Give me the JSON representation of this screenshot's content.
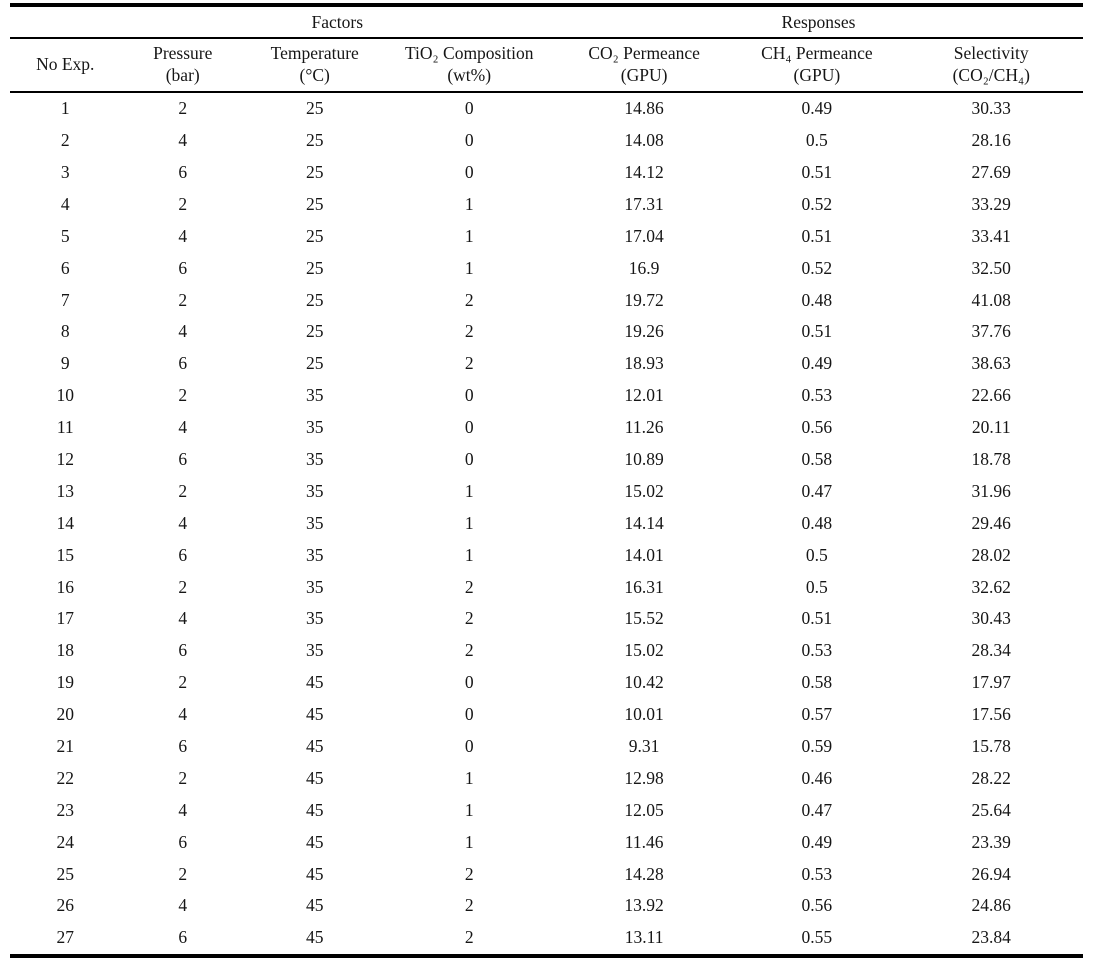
{
  "table": {
    "group_headers": {
      "factors": "Factors",
      "responses": "Responses"
    },
    "columns": [
      {
        "label": "No Exp.",
        "unit": ""
      },
      {
        "label": "Pressure",
        "unit": "(bar)"
      },
      {
        "label": "Temperature",
        "unit": "(°C)"
      },
      {
        "label": "TiO₂ Composition",
        "unit": "(wt%)"
      },
      {
        "label": "CO₂ Permeance",
        "unit": "(GPU)"
      },
      {
        "label": "CH₄ Permeance",
        "unit": "(GPU)"
      },
      {
        "label": "Selectivity",
        "unit": "(CO₂/CH₄)"
      }
    ],
    "rows": [
      [
        "1",
        "2",
        "25",
        "0",
        "14.86",
        "0.49",
        "30.33"
      ],
      [
        "2",
        "4",
        "25",
        "0",
        "14.08",
        "0.5",
        "28.16"
      ],
      [
        "3",
        "6",
        "25",
        "0",
        "14.12",
        "0.51",
        "27.69"
      ],
      [
        "4",
        "2",
        "25",
        "1",
        "17.31",
        "0.52",
        "33.29"
      ],
      [
        "5",
        "4",
        "25",
        "1",
        "17.04",
        "0.51",
        "33.41"
      ],
      [
        "6",
        "6",
        "25",
        "1",
        "16.9",
        "0.52",
        "32.50"
      ],
      [
        "7",
        "2",
        "25",
        "2",
        "19.72",
        "0.48",
        "41.08"
      ],
      [
        "8",
        "4",
        "25",
        "2",
        "19.26",
        "0.51",
        "37.76"
      ],
      [
        "9",
        "6",
        "25",
        "2",
        "18.93",
        "0.49",
        "38.63"
      ],
      [
        "10",
        "2",
        "35",
        "0",
        "12.01",
        "0.53",
        "22.66"
      ],
      [
        "11",
        "4",
        "35",
        "0",
        "11.26",
        "0.56",
        "20.11"
      ],
      [
        "12",
        "6",
        "35",
        "0",
        "10.89",
        "0.58",
        "18.78"
      ],
      [
        "13",
        "2",
        "35",
        "1",
        "15.02",
        "0.47",
        "31.96"
      ],
      [
        "14",
        "4",
        "35",
        "1",
        "14.14",
        "0.48",
        "29.46"
      ],
      [
        "15",
        "6",
        "35",
        "1",
        "14.01",
        "0.5",
        "28.02"
      ],
      [
        "16",
        "2",
        "35",
        "2",
        "16.31",
        "0.5",
        "32.62"
      ],
      [
        "17",
        "4",
        "35",
        "2",
        "15.52",
        "0.51",
        "30.43"
      ],
      [
        "18",
        "6",
        "35",
        "2",
        "15.02",
        "0.53",
        "28.34"
      ],
      [
        "19",
        "2",
        "45",
        "0",
        "10.42",
        "0.58",
        "17.97"
      ],
      [
        "20",
        "4",
        "45",
        "0",
        "10.01",
        "0.57",
        "17.56"
      ],
      [
        "21",
        "6",
        "45",
        "0",
        "9.31",
        "0.59",
        "15.78"
      ],
      [
        "22",
        "2",
        "45",
        "1",
        "12.98",
        "0.46",
        "28.22"
      ],
      [
        "23",
        "4",
        "45",
        "1",
        "12.05",
        "0.47",
        "25.64"
      ],
      [
        "24",
        "6",
        "45",
        "1",
        "11.46",
        "0.49",
        "23.39"
      ],
      [
        "25",
        "2",
        "45",
        "2",
        "14.28",
        "0.53",
        "26.94"
      ],
      [
        "26",
        "4",
        "45",
        "2",
        "13.92",
        "0.56",
        "24.86"
      ],
      [
        "27",
        "6",
        "45",
        "2",
        "13.11",
        "0.55",
        "23.84"
      ]
    ]
  },
  "colors": {
    "background": "#ffffff",
    "text": "#161616",
    "rule": "#000000"
  }
}
